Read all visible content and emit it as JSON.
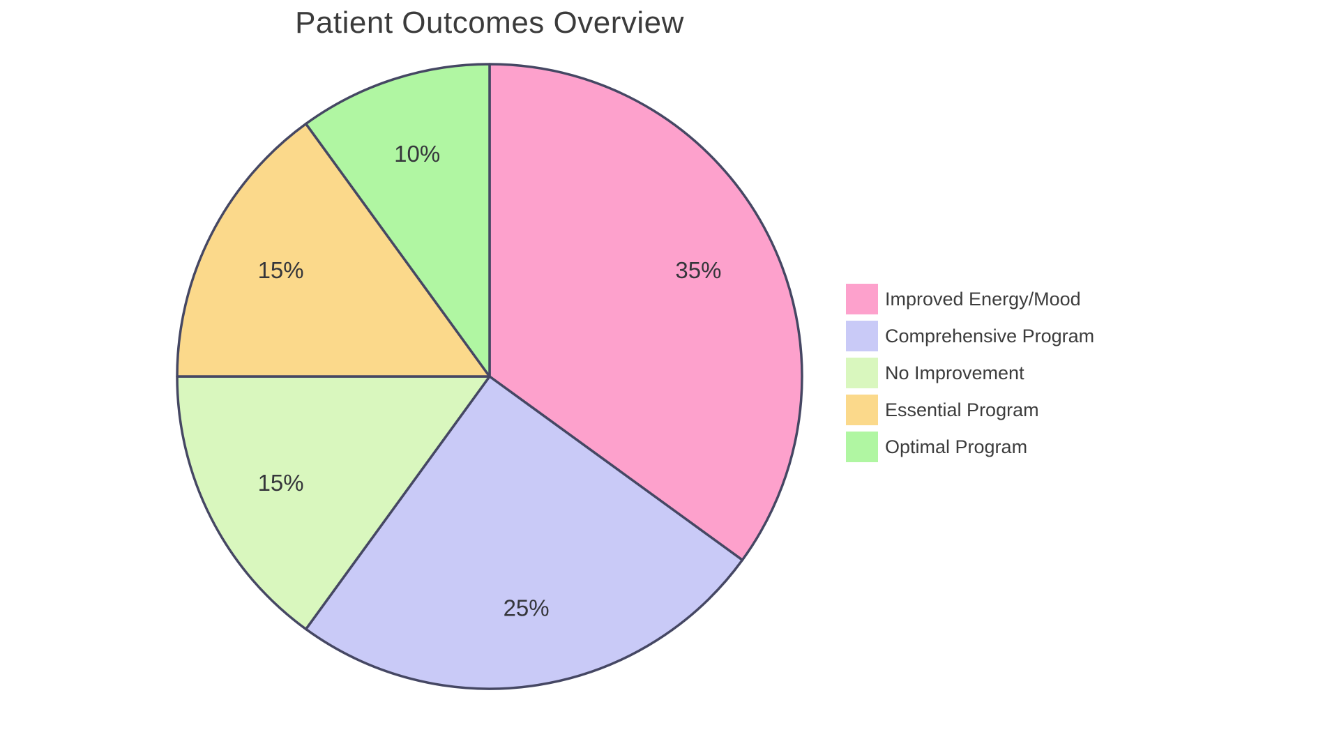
{
  "title": "Patient Outcomes Overview",
  "chart_data": {
    "type": "pie",
    "title": "Patient Outcomes Overview",
    "start_angle_deg": -90,
    "direction": "clockwise",
    "slices": [
      {
        "label": "Improved Energy/Mood",
        "value": 35,
        "percent_label": "35%",
        "color": "#FDA1CC"
      },
      {
        "label": "Comprehensive Program",
        "value": 25,
        "percent_label": "25%",
        "color": "#C9CAF7"
      },
      {
        "label": "No Improvement",
        "value": 15,
        "percent_label": "15%",
        "color": "#D9F7BE"
      },
      {
        "label": "Essential Program",
        "value": 15,
        "percent_label": "15%",
        "color": "#FBD98B"
      },
      {
        "label": "Optimal Program",
        "value": 10,
        "percent_label": "10%",
        "color": "#B0F6A2"
      }
    ],
    "legend": {
      "position": "right-center",
      "entries": [
        "Improved Energy/Mood",
        "Comprehensive Program",
        "No Improvement",
        "Essential Program",
        "Optimal Program"
      ]
    },
    "styles": {
      "wedge_outline_color": "#454763",
      "percent_label_color": "#35363B",
      "title_color": "#3B3B3B",
      "background": "#FFFFFF"
    }
  }
}
